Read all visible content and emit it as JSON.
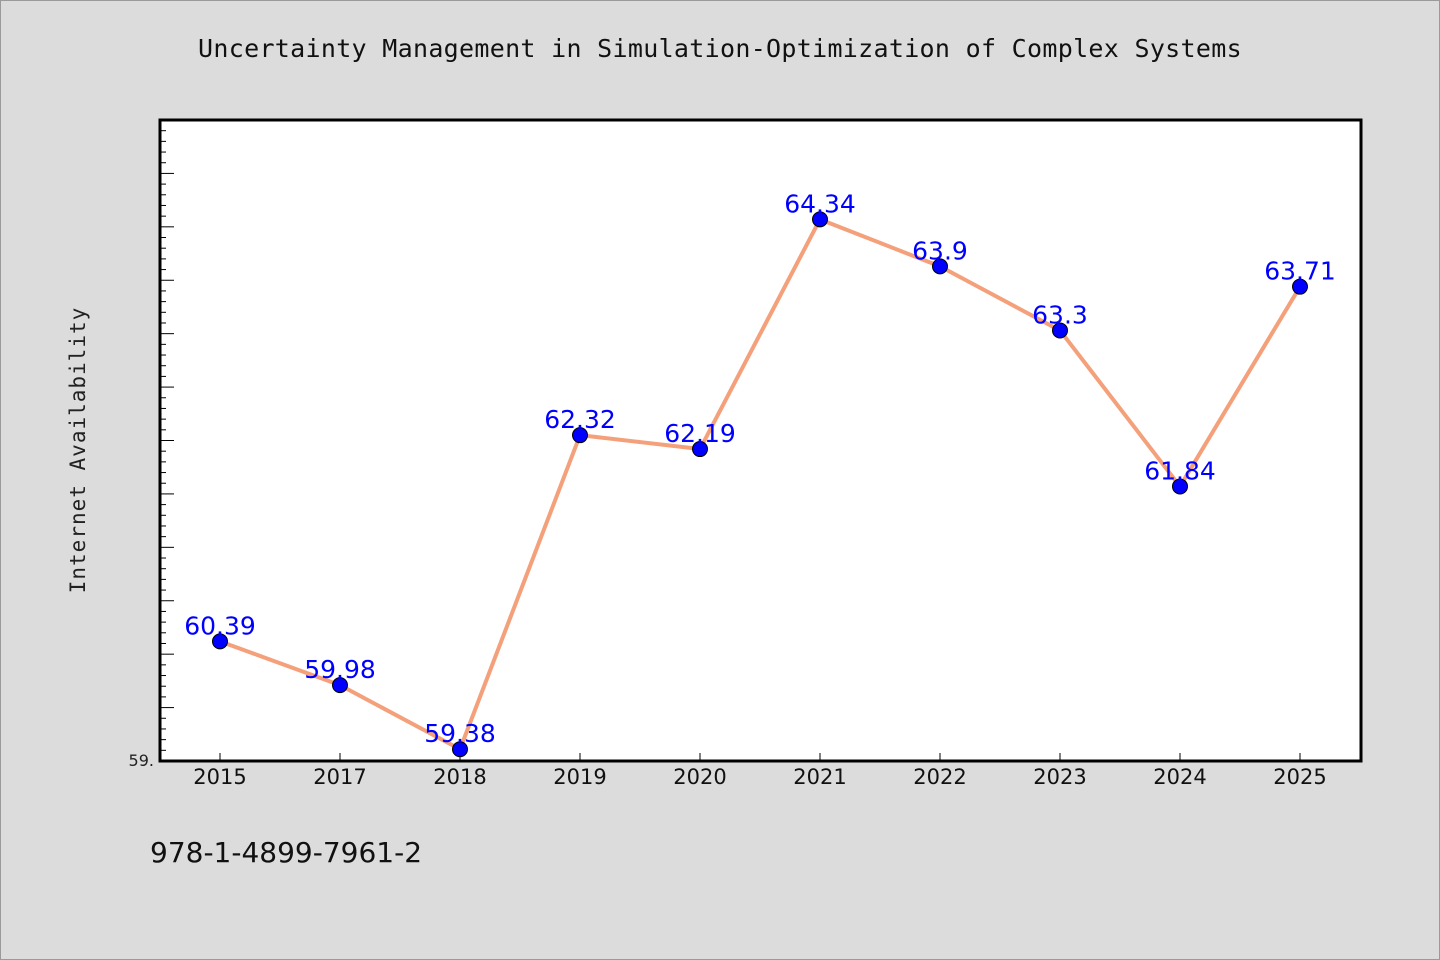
{
  "chart_data": {
    "type": "line",
    "title": "Uncertainty Management in Simulation-Optimization of Complex Systems",
    "ylabel": "Internet Availability",
    "xlabel": "",
    "categories": [
      "2015",
      "2017",
      "2018",
      "2019",
      "2020",
      "2021",
      "2022",
      "2023",
      "2024",
      "2025"
    ],
    "series": [
      {
        "values": [
          60.39,
          59.98,
          59.38,
          62.32,
          62.19,
          64.34,
          63.9,
          63.3,
          61.84,
          63.71
        ],
        "labels": [
          "60.39",
          "59.98",
          "59.38",
          "62.32",
          "62.19",
          "64.34",
          "63.9",
          "63.3",
          "61.84",
          "63.71"
        ]
      }
    ],
    "ylim": [
      59.27,
      65.27
    ],
    "y_tick_label": "59.",
    "line_color": "#f4a07a",
    "marker_color": "#0000ff",
    "label_color": "#0000ff",
    "grid": false
  },
  "footer": {
    "isbn": "978-1-4899-7961-2"
  }
}
